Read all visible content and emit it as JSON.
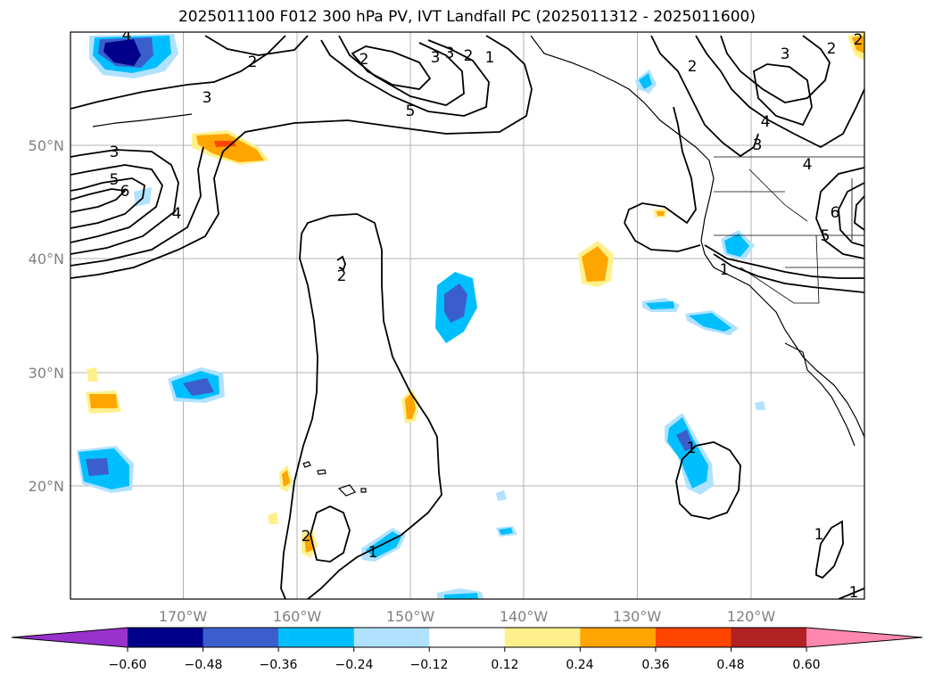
{
  "title": "2025011100 F012 300 hPa PV, IVT Landfall PC (2025011312 - 2025011600)",
  "map": {
    "projection": "PlateCarree",
    "lon_range": [
      -180,
      -110
    ],
    "lat_range": [
      10,
      60
    ],
    "gridlines": true,
    "lat_ticks": [
      "50°N",
      "40°N",
      "30°N",
      "20°N"
    ],
    "lon_ticks": [
      "170°W",
      "160°W",
      "150°W",
      "140°W",
      "130°W",
      "120°W"
    ],
    "contour_field": "300 hPa PV",
    "contour_labels": [
      "2",
      "3",
      "4",
      "5",
      "6",
      "2",
      "3",
      "4",
      "5",
      "3",
      "2",
      "2",
      "3",
      "3",
      "4",
      "2",
      "3",
      "4",
      "5",
      "6",
      "1",
      "1",
      "1",
      "1",
      "1",
      "2",
      "2",
      "1",
      "2"
    ],
    "shaded_field": "IVT Landfall PC"
  },
  "colorbar": {
    "tick_labels": [
      "−0.60",
      "−0.48",
      "−0.36",
      "−0.24",
      "−0.12",
      "0.12",
      "0.24",
      "0.36",
      "0.48",
      "0.60"
    ],
    "colors": [
      "#9932cc",
      "#00008b",
      "#3a5fcd",
      "#00bfff",
      "#b0e2ff",
      "#ffffff",
      "#fff08c",
      "#ffa500",
      "#ff4500",
      "#b22222",
      "#ff88b0"
    ],
    "extend": "both"
  }
}
